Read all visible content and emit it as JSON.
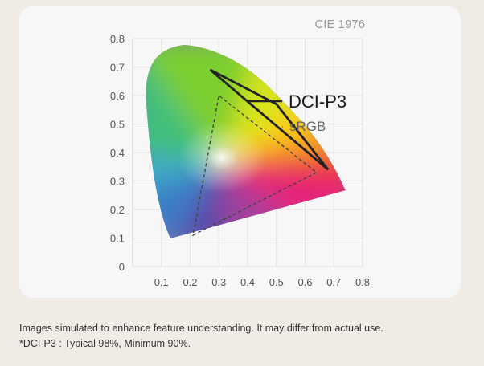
{
  "chart_data": {
    "type": "scatter",
    "corner_label": "CIE 1976",
    "xlim": [
      0,
      0.8
    ],
    "ylim": [
      0,
      0.8
    ],
    "xticks": [
      "0.1",
      "0.2",
      "0.3",
      "0.4",
      "0.5",
      "0.6",
      "0.7",
      "0.8"
    ],
    "yticks": [
      "0",
      "0.1",
      "0.2",
      "0.3",
      "0.4",
      "0.5",
      "0.6",
      "0.7",
      "0.8"
    ],
    "grid": true,
    "gamuts": [
      {
        "name": "DCI-P3",
        "line_style": "solid",
        "points": [
          [
            0.5,
            0.57
          ],
          [
            0.68,
            0.34
          ],
          [
            0.27,
            0.69
          ]
        ],
        "label_point": [
          0.4,
          0.58
        ]
      },
      {
        "name": "sRGB",
        "line_style": "dashed",
        "points": [
          [
            0.21,
            0.11
          ],
          [
            0.64,
            0.33
          ],
          [
            0.3,
            0.6
          ]
        ],
        "label_point": [
          0.52,
          0.49
        ]
      }
    ]
  },
  "colors": {
    "outline": "#222222",
    "grid": "#e2e2e2",
    "tick_text": "#555555",
    "corner_label": "#999999"
  },
  "caption": {
    "line1": "Images simulated to enhance feature understanding. It may differ from actual use.",
    "line2": "*DCI-P3 : Typical 98%, Minimum 90%."
  }
}
